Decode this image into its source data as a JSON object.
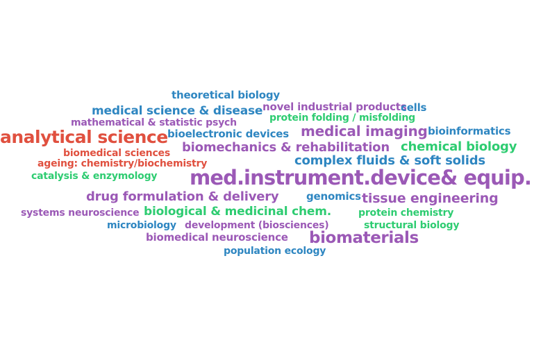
{
  "colors": {
    "red": "#e0503f",
    "purple": "#9b59b6",
    "blue": "#2e86c1",
    "green": "#2ecc71"
  },
  "words": [
    {
      "text": "theoretical biology",
      "color": "blue"
    },
    {
      "text": "medical science & disease",
      "color": "blue"
    },
    {
      "text": "novel industrial products",
      "color": "purple"
    },
    {
      "text": "cells",
      "color": "blue"
    },
    {
      "text": "mathematical & statistic psych",
      "color": "purple"
    },
    {
      "text": "protein folding / misfolding",
      "color": "green"
    },
    {
      "text": "analytical science",
      "color": "red"
    },
    {
      "text": "bioelectronic devices",
      "color": "blue"
    },
    {
      "text": "medical imaging",
      "color": "purple"
    },
    {
      "text": "bioinformatics",
      "color": "blue"
    },
    {
      "text": "biomedical sciences",
      "color": "red"
    },
    {
      "text": "biomechanics & rehabilitation",
      "color": "purple"
    },
    {
      "text": "chemical biology",
      "color": "green"
    },
    {
      "text": "ageing: chemistry/biochemistry",
      "color": "red"
    },
    {
      "text": "complex fluids & soft solids",
      "color": "blue"
    },
    {
      "text": "catalysis & enzymology",
      "color": "green"
    },
    {
      "text": "med.instrument.device& equip.",
      "color": "purple"
    },
    {
      "text": "drug formulation & delivery",
      "color": "purple"
    },
    {
      "text": "genomics",
      "color": "blue"
    },
    {
      "text": "tissue engineering",
      "color": "purple"
    },
    {
      "text": "systems neuroscience",
      "color": "purple"
    },
    {
      "text": "biological & medicinal chem.",
      "color": "green"
    },
    {
      "text": "protein chemistry",
      "color": "green"
    },
    {
      "text": "microbiology",
      "color": "blue"
    },
    {
      "text": "development (biosciences)",
      "color": "purple"
    },
    {
      "text": "structural biology",
      "color": "green"
    },
    {
      "text": "biomedical neuroscience",
      "color": "purple"
    },
    {
      "text": "biomaterials",
      "color": "purple"
    },
    {
      "text": "population ecology",
      "color": "blue"
    }
  ]
}
